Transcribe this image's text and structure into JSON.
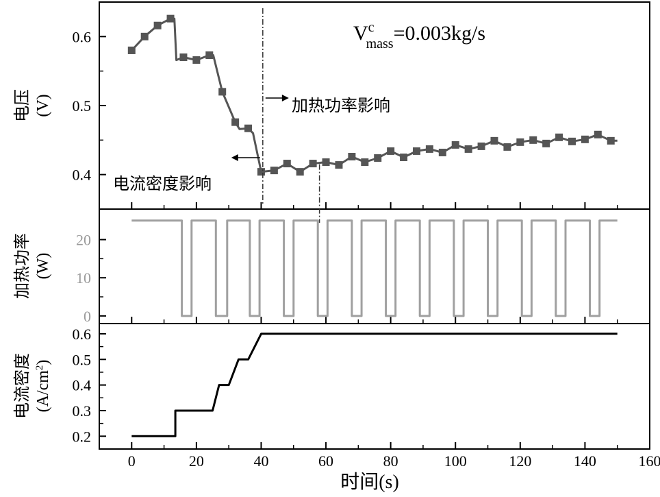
{
  "chart_data": {
    "type": "line",
    "x": {
      "label": "时间(s)",
      "ticks": [
        0,
        20,
        40,
        60,
        80,
        100,
        120,
        140,
        160
      ],
      "range": [
        -10,
        160
      ]
    },
    "panels": [
      {
        "name": "voltage",
        "ylabel": "电压",
        "yunit": "(V)",
        "yticks": [
          0.4,
          0.5,
          0.6
        ],
        "ylim": [
          0.35,
          0.65
        ],
        "color": "#555555",
        "marker": "square",
        "annotation_text": "V",
        "annotation_sup": "c",
        "annotation_sub": "mass",
        "annotation_tail": "=0.003kg/s",
        "labels": {
          "heating": "加热功率影响",
          "current": "电流密度影响"
        },
        "markers_at": [
          40.5,
          58
        ],
        "points": [
          [
            0,
            0.58
          ],
          [
            4,
            0.6
          ],
          [
            8,
            0.616
          ],
          [
            12,
            0.626
          ],
          [
            13.2,
            0.626
          ],
          [
            13.8,
            0.566
          ],
          [
            16,
            0.57
          ],
          [
            20,
            0.566
          ],
          [
            24,
            0.573
          ],
          [
            25.2,
            0.573
          ],
          [
            28,
            0.52
          ],
          [
            32,
            0.476
          ],
          [
            33.3,
            0.466
          ],
          [
            36,
            0.467
          ],
          [
            37.5,
            0.46
          ],
          [
            40,
            0.404
          ],
          [
            44,
            0.406
          ],
          [
            48,
            0.416
          ],
          [
            52,
            0.404
          ],
          [
            56,
            0.416
          ],
          [
            60,
            0.418
          ],
          [
            64,
            0.414
          ],
          [
            68,
            0.426
          ],
          [
            72,
            0.418
          ],
          [
            76,
            0.424
          ],
          [
            80,
            0.434
          ],
          [
            84,
            0.425
          ],
          [
            88,
            0.434
          ],
          [
            92,
            0.437
          ],
          [
            96,
            0.432
          ],
          [
            100,
            0.443
          ],
          [
            104,
            0.437
          ],
          [
            108,
            0.441
          ],
          [
            112,
            0.449
          ],
          [
            116,
            0.44
          ],
          [
            120,
            0.447
          ],
          [
            124,
            0.45
          ],
          [
            128,
            0.445
          ],
          [
            132,
            0.454
          ],
          [
            136,
            0.448
          ],
          [
            140,
            0.451
          ],
          [
            144,
            0.458
          ],
          [
            148,
            0.449
          ],
          [
            150,
            0.449
          ]
        ]
      },
      {
        "name": "heating_power",
        "ylabel": "加热功率",
        "yunit": "(W)",
        "yticks": [
          0,
          10,
          20
        ],
        "ylim": [
          -2,
          28
        ],
        "color": "#a0a0a0",
        "points": [
          [
            0,
            25
          ],
          [
            15.5,
            25
          ],
          [
            15.5,
            0
          ],
          [
            18.5,
            0
          ],
          [
            18.5,
            25
          ],
          [
            26,
            25
          ],
          [
            26,
            0
          ],
          [
            29.5,
            0
          ],
          [
            29.5,
            25
          ],
          [
            36.5,
            25
          ],
          [
            36.5,
            0
          ],
          [
            39.5,
            0
          ],
          [
            39.5,
            25
          ],
          [
            47,
            25
          ],
          [
            47,
            0
          ],
          [
            50,
            0
          ],
          [
            50,
            25
          ],
          [
            57.5,
            25
          ],
          [
            57.5,
            0
          ],
          [
            60.5,
            0
          ],
          [
            60.5,
            25
          ],
          [
            68,
            25
          ],
          [
            68,
            0
          ],
          [
            71,
            0
          ],
          [
            71,
            25
          ],
          [
            78.5,
            25
          ],
          [
            78.5,
            0
          ],
          [
            81.5,
            0
          ],
          [
            81.5,
            25
          ],
          [
            89,
            25
          ],
          [
            89,
            0
          ],
          [
            92,
            0
          ],
          [
            92,
            25
          ],
          [
            99.5,
            25
          ],
          [
            99.5,
            0
          ],
          [
            102.5,
            0
          ],
          [
            102.5,
            25
          ],
          [
            110,
            25
          ],
          [
            110,
            0
          ],
          [
            113,
            0
          ],
          [
            113,
            25
          ],
          [
            120.5,
            25
          ],
          [
            120.5,
            0
          ],
          [
            123.5,
            0
          ],
          [
            123.5,
            25
          ],
          [
            131,
            25
          ],
          [
            131,
            0
          ],
          [
            134,
            0
          ],
          [
            134,
            25
          ],
          [
            141.5,
            25
          ],
          [
            141.5,
            0
          ],
          [
            144.5,
            0
          ],
          [
            144.5,
            25
          ],
          [
            150,
            25
          ]
        ]
      },
      {
        "name": "current_density",
        "ylabel": "电流密度",
        "yunit_main": "(A/cm",
        "yunit_sup": "2",
        "yunit_tail": ")",
        "yticks": [
          0.2,
          0.3,
          0.4,
          0.5,
          0.6
        ],
        "ylim": [
          0.15,
          0.64
        ],
        "color": "#000000",
        "points": [
          [
            0,
            0.2
          ],
          [
            13.5,
            0.2
          ],
          [
            13.5,
            0.3
          ],
          [
            25,
            0.3
          ],
          [
            27,
            0.4
          ],
          [
            30,
            0.4
          ],
          [
            33,
            0.5
          ],
          [
            36,
            0.5
          ],
          [
            40,
            0.6
          ],
          [
            150,
            0.6
          ]
        ]
      }
    ]
  }
}
